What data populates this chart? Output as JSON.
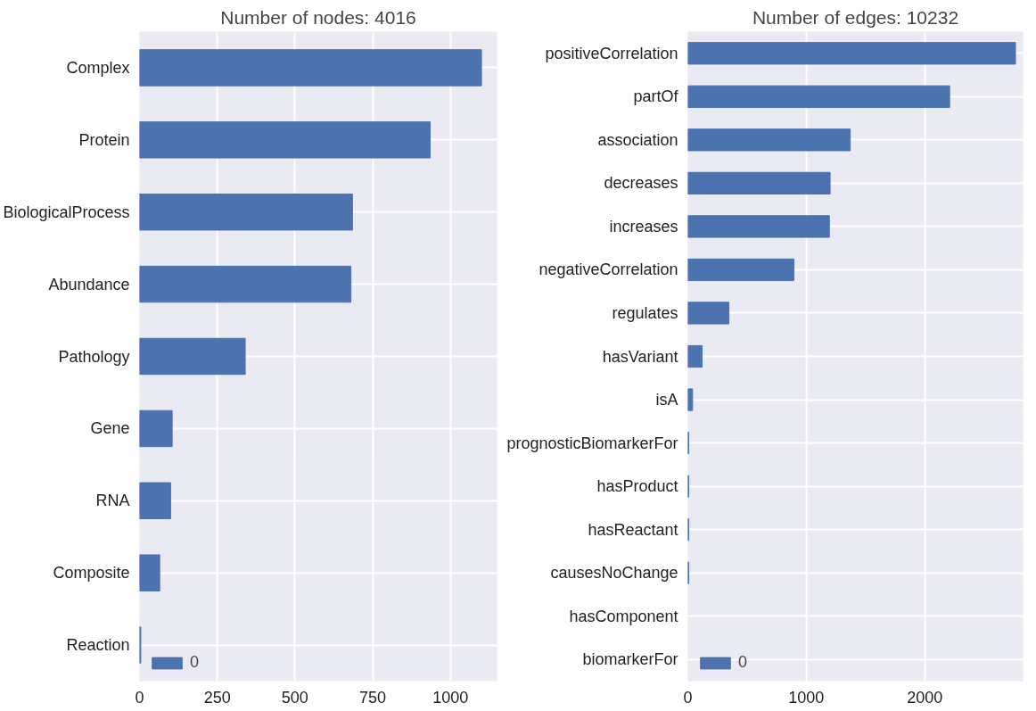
{
  "chart_data": [
    {
      "type": "bar",
      "orientation": "horizontal",
      "title": "Number of nodes: 4016",
      "categories": [
        "Complex",
        "Protein",
        "BiologicalProcess",
        "Abundance",
        "Pathology",
        "Gene",
        "RNA",
        "Composite",
        "Reaction"
      ],
      "series": [
        {
          "name": "0",
          "color": "#4c72b0",
          "values": [
            1100,
            935,
            685,
            680,
            340,
            105,
            100,
            65,
            4
          ]
        }
      ],
      "xlim": [
        0,
        1150
      ],
      "xticks": [
        0,
        250,
        500,
        750,
        1000
      ],
      "grid": true,
      "legend": "bottom left"
    },
    {
      "type": "bar",
      "orientation": "horizontal",
      "title": "Number of edges: 10232",
      "categories": [
        "positiveCorrelation",
        "partOf",
        "association",
        "decreases",
        "increases",
        "negativeCorrelation",
        "regulates",
        "hasVariant",
        "isA",
        "prognosticBiomarkerFor",
        "hasProduct",
        "hasReactant",
        "causesNoChange",
        "hasComponent",
        "biomarkerFor"
      ],
      "series": [
        {
          "name": "0",
          "color": "#4c72b0",
          "values": [
            2766,
            2210,
            1371,
            1201,
            1195,
            895,
            347,
            121,
            40,
            8,
            8,
            8,
            8,
            null,
            null
          ]
        }
      ],
      "xlim": [
        0,
        2830
      ],
      "xticks": [
        0,
        1000,
        2000
      ],
      "grid": true,
      "legend": "bottom left"
    }
  ]
}
